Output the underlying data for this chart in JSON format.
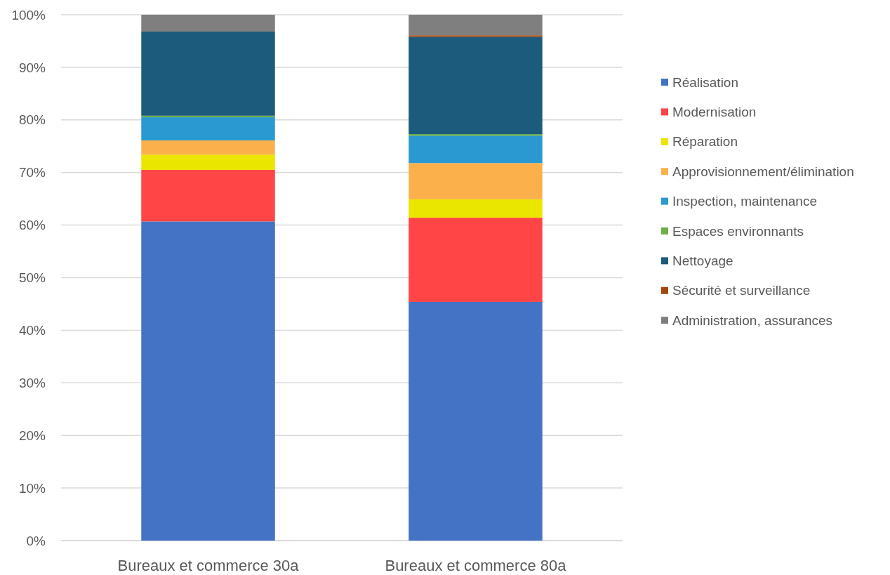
{
  "chart_data": {
    "type": "bar",
    "stacked": true,
    "categories": [
      "Bureaux et commerce 30a",
      "Bureaux et commerce 80a"
    ],
    "series": [
      {
        "name": "Réalisation",
        "color": "#4472c4",
        "values": [
          60.7,
          45.4
        ]
      },
      {
        "name": "Modernisation",
        "color": "#ff4545",
        "values": [
          9.8,
          16.0
        ]
      },
      {
        "name": "Réparation",
        "color": "#eae600",
        "values": [
          2.9,
          3.5
        ]
      },
      {
        "name": "Approvisionnement/élimination",
        "color": "#fbb04c",
        "values": [
          2.7,
          6.9
        ]
      },
      {
        "name": "Inspection, maintenance",
        "color": "#2b99d1",
        "values": [
          4.4,
          5.2
        ]
      },
      {
        "name": "Espaces environnants",
        "color": "#70ad47",
        "values": [
          0.3,
          0.3
        ]
      },
      {
        "name": "Nettoyage",
        "color": "#1c5b7b",
        "values": [
          16.0,
          18.5
        ]
      },
      {
        "name": "Sécurité et surveillance",
        "color": "#a5470f",
        "values": [
          0,
          0.3
        ]
      },
      {
        "name": "Administration, assurances",
        "color": "#7f7f7f",
        "values": [
          3.2,
          3.9
        ]
      }
    ],
    "ylim": [
      0,
      100
    ],
    "yticks": [
      {
        "value": 0,
        "label": "0%"
      },
      {
        "value": 10,
        "label": "10%"
      },
      {
        "value": 20,
        "label": "20%"
      },
      {
        "value": 30,
        "label": "30%"
      },
      {
        "value": 40,
        "label": "40%"
      },
      {
        "value": 50,
        "label": "50%"
      },
      {
        "value": 60,
        "label": "60%"
      },
      {
        "value": 70,
        "label": "70%"
      },
      {
        "value": 80,
        "label": "80%"
      },
      {
        "value": 90,
        "label": "90%"
      },
      {
        "value": 100,
        "label": "100%"
      }
    ],
    "grid": "y",
    "legend": "right"
  }
}
